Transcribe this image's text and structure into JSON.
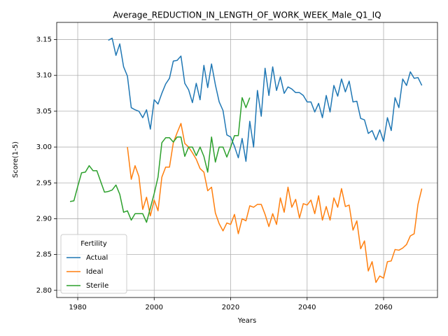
{
  "chart_data": {
    "type": "line",
    "title": "Average_REDUCTION_IN_LENGTH_OF_WORK_WEEK_Male_Q1_IQ",
    "x_label": "Years",
    "y_label": "Score(1-5)",
    "legend_title": "Fertility",
    "legend_loc": "lower left",
    "grid": true,
    "xlim": [
      1974.5,
      2074.1
    ],
    "ylim": [
      2.79,
      3.174
    ],
    "xticks": [
      1980,
      2000,
      2020,
      2040,
      2060
    ],
    "yticks": [
      {
        "value": 2.8,
        "label": "2.80"
      },
      2.85,
      {
        "value": 2.9,
        "label": "2.90"
      },
      2.95,
      {
        "value": 3.0,
        "label": "3.00"
      },
      3.05,
      {
        "value": 3.1,
        "label": "3.10"
      },
      3.15
    ],
    "x": [
      1978,
      1979,
      1980,
      1981,
      1982,
      1983,
      1984,
      1985,
      1986,
      1987,
      1988,
      1989,
      1990,
      1991,
      1992,
      1993,
      1994,
      1995,
      1996,
      1997,
      1998,
      1999,
      2000,
      2001,
      2002,
      2003,
      2004,
      2005,
      2006,
      2007,
      2008,
      2009,
      2010,
      2011,
      2012,
      2013,
      2014,
      2015,
      2016,
      2017,
      2018,
      2019,
      2020,
      2021,
      2022,
      2023,
      2024,
      2025,
      2026,
      2027,
      2028,
      2029,
      2030,
      2031,
      2032,
      2033,
      2034,
      2035,
      2036,
      2037,
      2038,
      2039,
      2040,
      2041,
      2042,
      2043,
      2044,
      2045,
      2046,
      2047,
      2048,
      2049,
      2050,
      2051,
      2052,
      2053,
      2054,
      2055,
      2056,
      2057,
      2058,
      2059,
      2060,
      2061,
      2062,
      2063,
      2064,
      2065,
      2066,
      2067,
      2068,
      2069,
      2070
    ],
    "series": [
      {
        "name": "Actual",
        "color": "#1f77b4",
        "values": [
          null,
          null,
          null,
          null,
          null,
          null,
          null,
          null,
          null,
          null,
          3.149,
          3.152,
          3.128,
          3.144,
          3.112,
          3.099,
          3.055,
          3.052,
          3.05,
          3.041,
          3.052,
          3.025,
          3.066,
          3.06,
          3.075,
          3.088,
          3.096,
          3.12,
          3.121,
          3.127,
          3.089,
          3.08,
          3.062,
          3.089,
          3.066,
          3.114,
          3.083,
          3.116,
          3.087,
          3.063,
          3.051,
          3.017,
          3.014,
          3.001,
          2.985,
          3.012,
          2.98,
          3.036,
          3.0,
          3.079,
          3.043,
          3.11,
          3.072,
          3.112,
          3.079,
          3.098,
          3.075,
          3.084,
          3.081,
          3.076,
          3.076,
          3.072,
          3.063,
          3.063,
          3.049,
          3.061,
          3.041,
          3.072,
          3.049,
          3.086,
          3.071,
          3.095,
          3.077,
          3.092,
          3.063,
          3.064,
          3.04,
          3.038,
          3.019,
          3.023,
          3.01,
          3.024,
          3.008,
          3.041,
          3.023,
          3.069,
          3.055,
          3.095,
          3.086,
          3.105,
          3.096,
          3.097,
          3.086
        ]
      },
      {
        "name": "Ideal",
        "color": "#ff7f0e",
        "values": [
          null,
          null,
          null,
          null,
          null,
          null,
          null,
          null,
          null,
          null,
          null,
          null,
          null,
          null,
          null,
          3.0,
          2.955,
          2.974,
          2.959,
          2.913,
          2.93,
          2.904,
          2.926,
          2.911,
          2.958,
          2.972,
          2.972,
          3.006,
          3.02,
          3.033,
          3.005,
          3.0,
          2.992,
          2.983,
          2.97,
          2.965,
          2.939,
          2.944,
          2.908,
          2.893,
          2.883,
          2.894,
          2.892,
          2.906,
          2.879,
          2.9,
          2.897,
          2.918,
          2.916,
          2.92,
          2.92,
          2.906,
          2.889,
          2.907,
          2.892,
          2.929,
          2.909,
          2.944,
          2.916,
          2.927,
          2.901,
          2.921,
          2.919,
          2.926,
          2.907,
          2.932,
          2.898,
          2.917,
          2.898,
          2.929,
          2.916,
          2.942,
          2.917,
          2.919,
          2.884,
          2.897,
          2.858,
          2.869,
          2.827,
          2.84,
          2.811,
          2.82,
          2.817,
          2.84,
          2.841,
          2.857,
          2.856,
          2.859,
          2.864,
          2.876,
          2.879,
          2.92,
          2.942
        ]
      },
      {
        "name": "Sterile",
        "color": "#2ca02c",
        "values": [
          2.924,
          2.925,
          2.945,
          2.964,
          2.965,
          2.974,
          2.967,
          2.967,
          2.952,
          2.937,
          2.938,
          2.94,
          2.947,
          2.934,
          2.909,
          2.911,
          2.898,
          2.907,
          2.907,
          2.907,
          2.895,
          2.915,
          2.935,
          2.958,
          3.006,
          3.013,
          3.013,
          3.007,
          3.014,
          3.014,
          2.987,
          3.0,
          3.0,
          2.988,
          3.0,
          2.987,
          2.965,
          3.014,
          2.979,
          3.0,
          3.0,
          2.986,
          3.0,
          3.016,
          3.016,
          3.069,
          3.055,
          3.069,
          null,
          null,
          null,
          null,
          null,
          null,
          null,
          null,
          null,
          null,
          null,
          null,
          null,
          null,
          null,
          null,
          null,
          null,
          null,
          null,
          null,
          null,
          null,
          null,
          null,
          null,
          null,
          null,
          null,
          null,
          null,
          null,
          null,
          null,
          null,
          null,
          null,
          null,
          null,
          null,
          null,
          null,
          null,
          null,
          null
        ]
      }
    ]
  }
}
